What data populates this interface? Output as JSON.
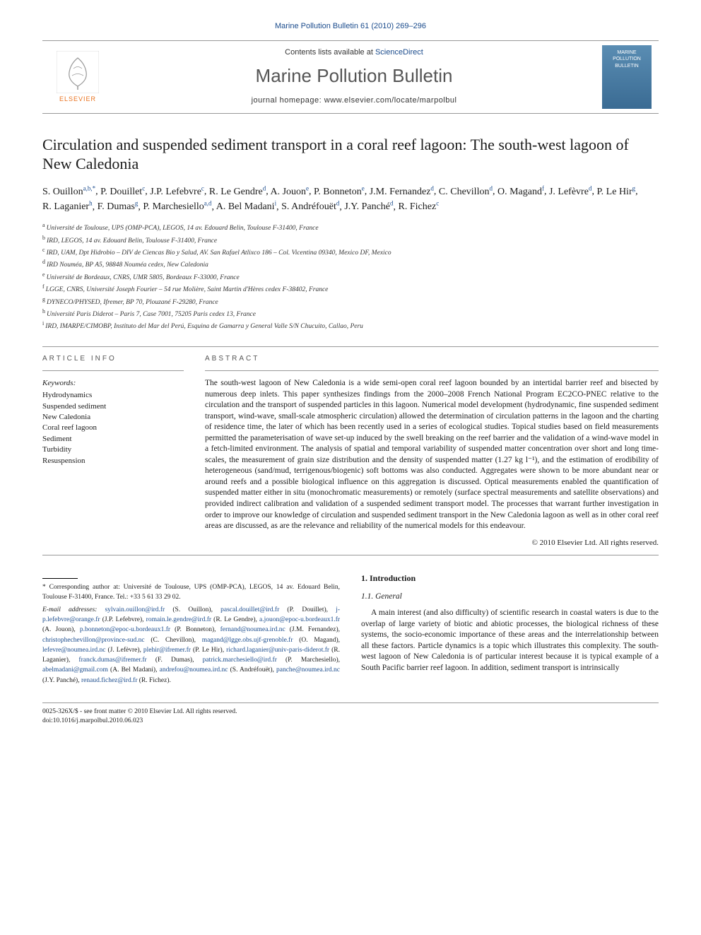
{
  "page_header": "Marine Pollution Bulletin 61 (2010) 269–296",
  "masthead": {
    "contents_prefix": "Contents lists available at ",
    "contents_link": "ScienceDirect",
    "journal_title": "Marine Pollution Bulletin",
    "homepage_prefix": "journal homepage: ",
    "homepage_url": "www.elsevier.com/locate/marpolbul",
    "publisher": "ELSEVIER",
    "cover_line1": "MARINE",
    "cover_line2": "POLLUTION",
    "cover_line3": "BULLETIN"
  },
  "title": "Circulation and suspended sediment transport in a coral reef lagoon: The south-west lagoon of New Caledonia",
  "authors": [
    {
      "name": "S. Ouillon",
      "sup": "a,b,*"
    },
    {
      "name": "P. Douillet",
      "sup": "c"
    },
    {
      "name": "J.P. Lefebvre",
      "sup": "c"
    },
    {
      "name": "R. Le Gendre",
      "sup": "d"
    },
    {
      "name": "A. Jouon",
      "sup": "e"
    },
    {
      "name": "P. Bonneton",
      "sup": "e"
    },
    {
      "name": "J.M. Fernandez",
      "sup": "d"
    },
    {
      "name": "C. Chevillon",
      "sup": "d"
    },
    {
      "name": "O. Magand",
      "sup": "f"
    },
    {
      "name": "J. Lefèvre",
      "sup": "d"
    },
    {
      "name": "P. Le Hir",
      "sup": "g"
    },
    {
      "name": "R. Laganier",
      "sup": "h"
    },
    {
      "name": "F. Dumas",
      "sup": "g"
    },
    {
      "name": "P. Marchesiello",
      "sup": "a,d"
    },
    {
      "name": "A. Bel Madani",
      "sup": "i"
    },
    {
      "name": "S. Andréfouët",
      "sup": "d"
    },
    {
      "name": "J.Y. Panché",
      "sup": "d"
    },
    {
      "name": "R. Fichez",
      "sup": "c"
    }
  ],
  "affiliations": [
    {
      "sup": "a",
      "text": "Université de Toulouse, UPS (OMP-PCA), LEGOS, 14 av. Edouard Belin, Toulouse F-31400, France"
    },
    {
      "sup": "b",
      "text": "IRD, LEGOS, 14 av. Edouard Belin, Toulouse F-31400, France"
    },
    {
      "sup": "c",
      "text": "IRD, UAM, Dpt Hidrobio – DIV de Ciencas Bio y Salud, AV. San Rafael Atlixco 186 – Col. Vicentina 09340, Mexico DF, Mexico"
    },
    {
      "sup": "d",
      "text": "IRD Nouméa, BP A5, 98848 Nouméa cedex, New Caledonia"
    },
    {
      "sup": "e",
      "text": "Université de Bordeaux, CNRS, UMR 5805, Bordeaux F-33000, France"
    },
    {
      "sup": "f",
      "text": "LGGE, CNRS, Université Joseph Fourier – 54 rue Molière, Saint Martin d'Hères cedex F-38402, France"
    },
    {
      "sup": "g",
      "text": "DYNECO/PHYSED, Ifremer, BP 70, Plouzané F-29280, France"
    },
    {
      "sup": "h",
      "text": "Université Paris Diderot – Paris 7, Case 7001, 75205 Paris cedex 13, France"
    },
    {
      "sup": "i",
      "text": "IRD, IMARPE/CIMOBP, Instituto del Mar del Perú, Esquina de Gamarra y General Valle S/N Chucuito, Callao, Peru"
    }
  ],
  "info": {
    "article_info_label": "ARTICLE INFO",
    "abstract_label": "ABSTRACT",
    "keywords_label": "Keywords:",
    "keywords": [
      "Hydrodynamics",
      "Suspended sediment",
      "New Caledonia",
      "Coral reef lagoon",
      "Sediment",
      "Turbidity",
      "Resuspension"
    ],
    "abstract": "The south-west lagoon of New Caledonia is a wide semi-open coral reef lagoon bounded by an intertidal barrier reef and bisected by numerous deep inlets. This paper synthesizes findings from the 2000–2008 French National Program EC2CO-PNEC relative to the circulation and the transport of suspended particles in this lagoon. Numerical model development (hydrodynamic, fine suspended sediment transport, wind-wave, small-scale atmospheric circulation) allowed the determination of circulation patterns in the lagoon and the charting of residence time, the later of which has been recently used in a series of ecological studies. Topical studies based on field measurements permitted the parameterisation of wave set-up induced by the swell breaking on the reef barrier and the validation of a wind-wave model in a fetch-limited environment. The analysis of spatial and temporal variability of suspended matter concentration over short and long time-scales, the measurement of grain size distribution and the density of suspended matter (1.27 kg l⁻¹), and the estimation of erodibility of heterogeneous (sand/mud, terrigenous/biogenic) soft bottoms was also conducted. Aggregates were shown to be more abundant near or around reefs and a possible biological influence on this aggregation is discussed. Optical measurements enabled the quantification of suspended matter either in situ (monochromatic measurements) or remotely (surface spectral measurements and satellite observations) and provided indirect calibration and validation of a suspended sediment transport model. The processes that warrant further investigation in order to improve our knowledge of circulation and suspended sediment transport in the New Caledonia lagoon as well as in other coral reef areas are discussed, as are the relevance and reliability of the numerical models for this endeavour.",
    "copyright": "© 2010 Elsevier Ltd. All rights reserved."
  },
  "corresponding": {
    "star": "*",
    "text": "Corresponding author at: Université de Toulouse, UPS (OMP-PCA), LEGOS, 14 av. Edouard Belin, Toulouse F-31400, France. Tel.: +33 5 61 33 29 02.",
    "email_label": "E-mail addresses:"
  },
  "emails": [
    {
      "addr": "sylvain.ouillon@ird.fr",
      "who": "(S. Ouillon)"
    },
    {
      "addr": "pascal.douillet@ird.fr",
      "who": "(P. Douillet)"
    },
    {
      "addr": "j-p.lefebvre@orange.fr",
      "who": "(J.P. Lefebvre)"
    },
    {
      "addr": "romain.le.gendre@ird.fr",
      "who": "(R. Le Gendre)"
    },
    {
      "addr": "a.jouon@epoc-u.bordeaux1.fr",
      "who": "(A. Jouon)"
    },
    {
      "addr": "p.bonneton@epoc-u.bordeaux1.fr",
      "who": "(P. Bonneton)"
    },
    {
      "addr": "fernand@noumea.ird.nc",
      "who": "(J.M. Fernandez)"
    },
    {
      "addr": "christophechevillon@province-sud.nc",
      "who": "(C. Chevillon)"
    },
    {
      "addr": "magand@lgge.obs.ujf-grenoble.fr",
      "who": "(O. Magand)"
    },
    {
      "addr": "lefevre@noumea.ird.nc",
      "who": "(J. Lefèvre)"
    },
    {
      "addr": "plehir@ifremer.fr",
      "who": "(P. Le Hir)"
    },
    {
      "addr": "richard.laganier@univ-paris-diderot.fr",
      "who": "(R. Laganier)"
    },
    {
      "addr": "franck.dumas@ifremer.fr",
      "who": "(F. Dumas)"
    },
    {
      "addr": "patrick.marchesiello@ird.fr",
      "who": "(P. Marchesiello)"
    },
    {
      "addr": "abelmadani@gmail.com",
      "who": "(A. Bel Madani)"
    },
    {
      "addr": "andrefou@noumea.ird.nc",
      "who": "(S. Andréfouët)"
    },
    {
      "addr": "panche@noumea.ird.nc",
      "who": "(J.Y. Panché)"
    },
    {
      "addr": "renaud.fichez@ird.fr",
      "who": "(R. Fichez)"
    }
  ],
  "body": {
    "section_num": "1.",
    "section_title": "Introduction",
    "subsection_num": "1.1.",
    "subsection_title": "General",
    "para1": "A main interest (and also difficulty) of scientific research in coastal waters is due to the overlap of large variety of biotic and abiotic processes, the biological richness of these systems, the socio-economic importance of these areas and the interrelationship between all these factors. Particle dynamics is a topic which illustrates this complexity. The south-west lagoon of New Caledonia is of particular interest because it is typical example of a South Pacific barrier reef lagoon. In addition, sediment transport is intrinsically"
  },
  "footer": {
    "issn_line": "0025-326X/$ - see front matter © 2010 Elsevier Ltd. All rights reserved.",
    "doi_line": "doi:10.1016/j.marpolbul.2010.06.023"
  },
  "colors": {
    "link": "#1a4b8c",
    "elsevier_orange": "#e9711c",
    "rule_gray": "#999999",
    "text": "#1a1a1a"
  }
}
